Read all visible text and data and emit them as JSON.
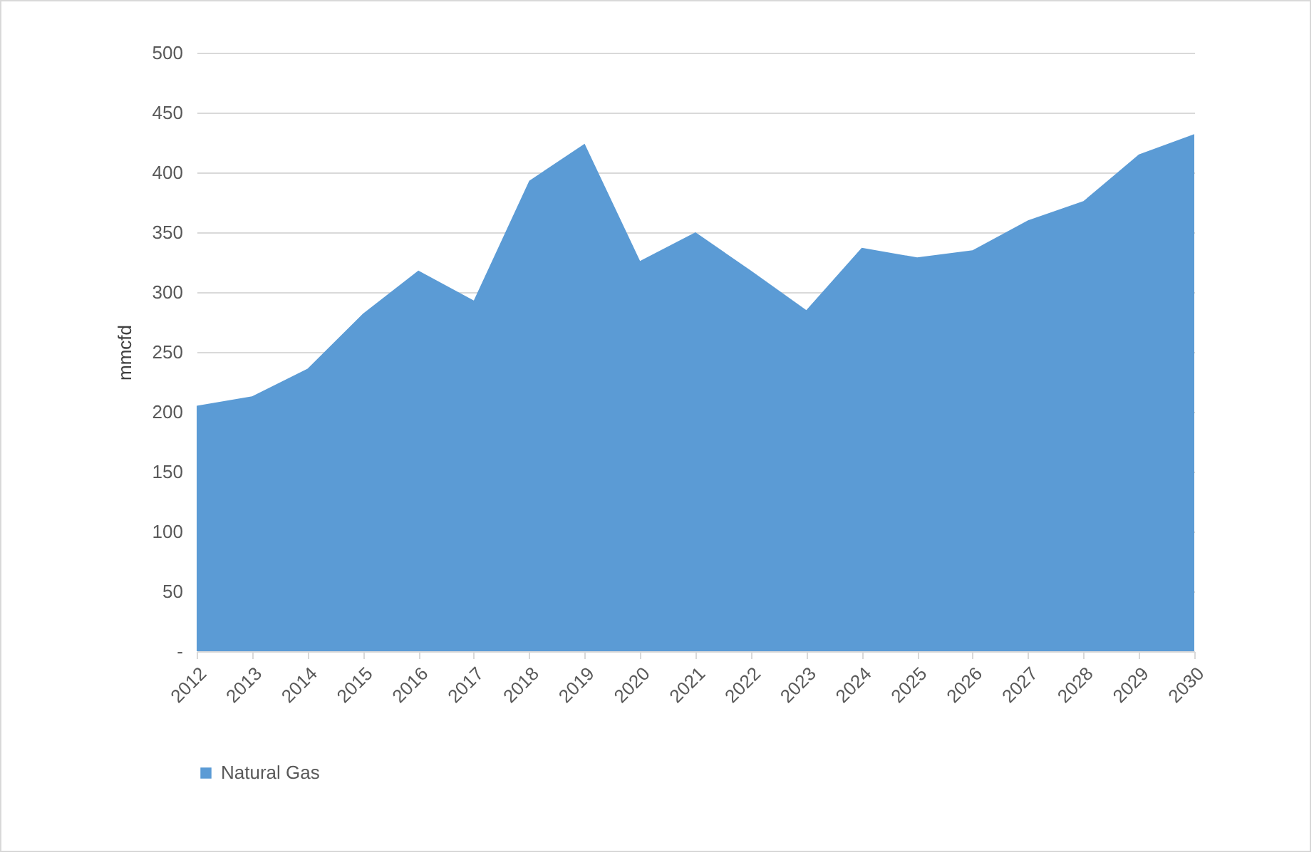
{
  "chart_data": {
    "type": "area",
    "ylabel": "mmcfd",
    "categories": [
      "2012",
      "2013",
      "2014",
      "2015",
      "2016",
      "2017",
      "2018",
      "2019",
      "2020",
      "2021",
      "2022",
      "2023",
      "2024",
      "2025",
      "2026",
      "2027",
      "2028",
      "2029",
      "2030"
    ],
    "series": [
      {
        "name": "Natural Gas",
        "color": "#5b9bd5",
        "values": [
          205,
          213,
          236,
          282,
          318,
          293,
          393,
          424,
          326,
          350,
          318,
          285,
          337,
          329,
          335,
          360,
          376,
          415,
          432
        ]
      }
    ],
    "ylim": [
      0,
      500
    ],
    "yticks": [
      {
        "value": 0,
        "label": "-"
      },
      50,
      100,
      150,
      200,
      250,
      300,
      350,
      400,
      450,
      500
    ],
    "grid": "y",
    "legend": "bottom"
  }
}
